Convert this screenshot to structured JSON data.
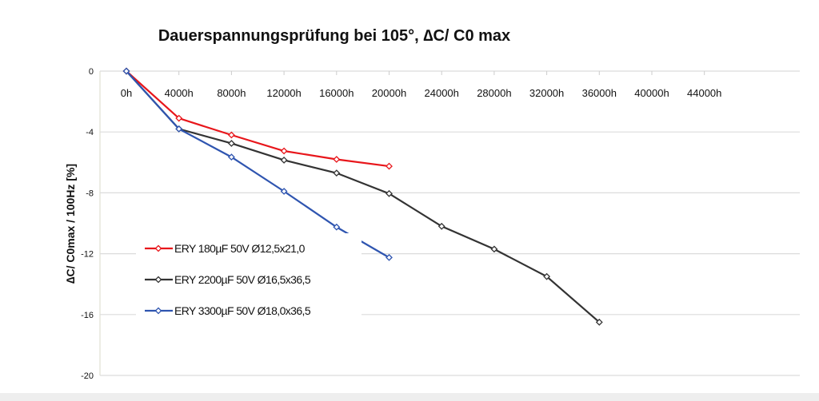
{
  "chart_data": {
    "type": "line",
    "title": "Dauerspannungsprüfung bei 105°, ∆C/ C0 max",
    "xlabel": "",
    "ylabel": "∆C/ C0max /  100Hz [%]",
    "x_tick_labels": [
      "0h",
      "4000h",
      "8000h",
      "12000h",
      "16000h",
      "20000h",
      "24000h",
      "28000h",
      "32000h",
      "36000h",
      "40000h",
      "44000h"
    ],
    "y_tick_labels": [
      "0",
      "-4",
      "-8",
      "-12",
      "-16",
      "-20"
    ],
    "xlim": [
      0,
      44000
    ],
    "ylim": [
      -20,
      0
    ],
    "grid": "horizontal",
    "legend_position": "bottom-left",
    "series": [
      {
        "name": "ERY 180µF 50V Ø12,5x21,0",
        "color": "#e8161b",
        "x": [
          0,
          4000,
          8000,
          12000,
          16000,
          20000
        ],
        "y": [
          0,
          -3.1,
          -4.2,
          -5.25,
          -5.8,
          -6.25
        ]
      },
      {
        "name": "ERY 2200µF 50V Ø16,5x36,5",
        "color": "#333333",
        "x": [
          0,
          4000,
          8000,
          12000,
          16000,
          20000,
          24000,
          28000,
          32000,
          36000
        ],
        "y": [
          0,
          -3.8,
          -4.75,
          -5.85,
          -6.7,
          -8.05,
          -10.2,
          -11.7,
          -13.5,
          -16.5
        ]
      },
      {
        "name": "ERY 3300µF 50V Ø18,0x36,5",
        "color": "#2f55b0",
        "x": [
          0,
          4000,
          8000,
          12000,
          16000,
          20000
        ],
        "y": [
          0,
          -3.8,
          -5.65,
          -7.9,
          -10.25,
          -12.25
        ]
      }
    ]
  }
}
